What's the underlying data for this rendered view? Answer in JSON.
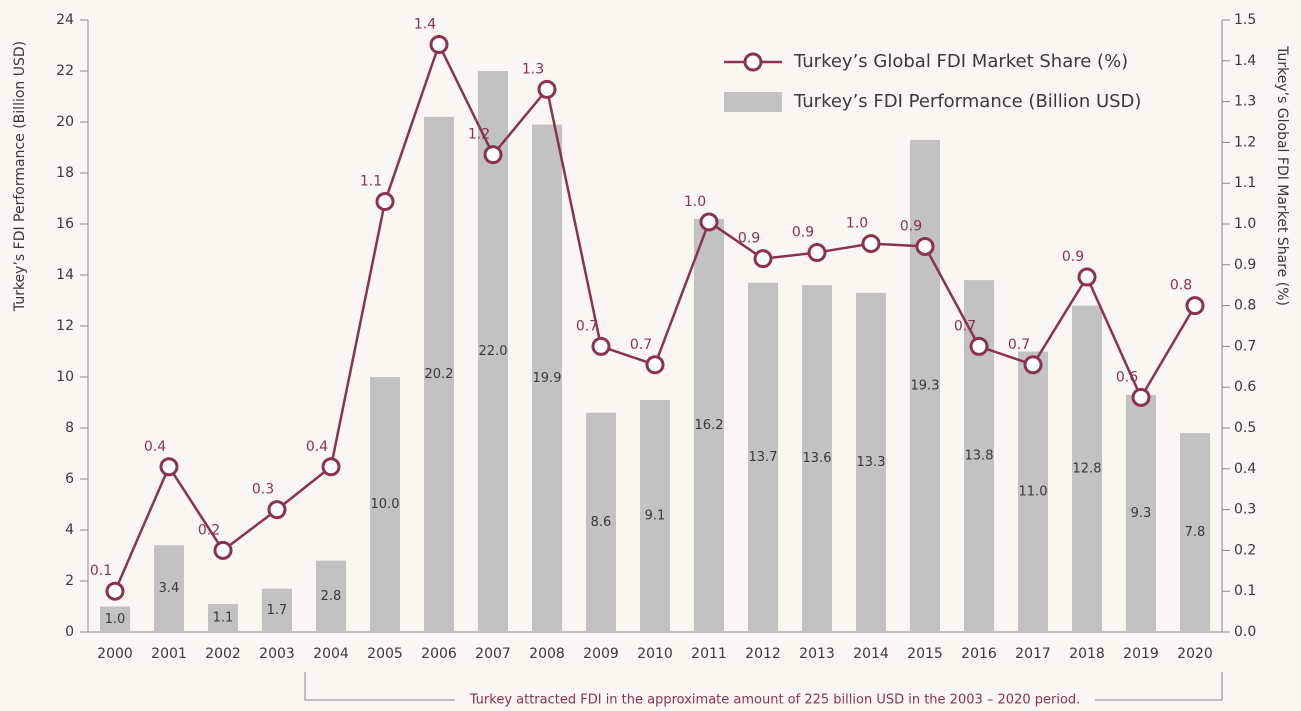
{
  "chart_data": {
    "type": "bar",
    "legend_position": "upper right",
    "y_label": "Turkey’s FDI Performance (Billion USD)",
    "y2_label": "Turkey’s Global FDI Market Share (%)",
    "annotation": "Turkey attracted FDI in the approximate amount of 225 billion USD in the 2003 – 2020 period.",
    "categories": [
      "2000",
      "2001",
      "2002",
      "2003",
      "2004",
      "2005",
      "2006",
      "2007",
      "2008",
      "2009",
      "2010",
      "2011",
      "2012",
      "2013",
      "2014",
      "2015",
      "2016",
      "2017",
      "2018",
      "2019",
      "2020"
    ],
    "series": [
      {
        "name": "Turkey’s Global FDI Market Share (%)",
        "type": "line",
        "axis": "y2",
        "color": "#8b3250",
        "values": [
          0.1,
          0.405,
          0.2,
          0.3,
          0.405,
          1.055,
          1.44,
          1.17,
          1.33,
          0.7,
          0.655,
          1.005,
          0.915,
          0.93,
          0.952,
          0.945,
          0.7,
          0.655,
          0.87,
          0.575,
          0.8
        ],
        "value_labels": [
          "0.1",
          "0.4",
          "0.2",
          "0.3",
          "0.4",
          "1.1",
          "1.4",
          "1.2",
          "1.3",
          "0.7",
          "0.7",
          "1.0",
          "0.9",
          "0.9",
          "1.0",
          "0.9",
          "0.7",
          "0.7",
          "0.9",
          "0.6",
          "0.8"
        ]
      },
      {
        "name": "Turkey’s FDI Performance (Billion USD)",
        "type": "bar",
        "axis": "y",
        "color": "#c2c2c2",
        "values": [
          1.0,
          3.4,
          1.1,
          1.7,
          2.8,
          10.0,
          20.2,
          22.0,
          19.9,
          8.6,
          9.1,
          16.2,
          13.7,
          13.6,
          13.3,
          19.3,
          13.8,
          11.0,
          12.8,
          9.3,
          7.8
        ],
        "value_labels": [
          "1.0",
          "3.4",
          "1.1",
          "1.7",
          "2.8",
          "10.0",
          "20.2",
          "22.0",
          "19.9",
          "8.6",
          "9.1",
          "16.2",
          "13.7",
          "13.6",
          "13.3",
          "19.3",
          "13.8",
          "11.0",
          "12.8",
          "9.3",
          "7.8"
        ]
      }
    ],
    "ylim": [
      0,
      24
    ],
    "yticks": [
      0,
      2,
      4,
      6,
      8,
      10,
      12,
      14,
      16,
      18,
      20,
      22,
      24
    ],
    "y2lim": [
      0,
      1.5
    ],
    "y2ticks": [
      {
        "value": 0,
        "label": "0.0"
      },
      0.1,
      0.2,
      0.3,
      0.4,
      0.5,
      0.6,
      0.7,
      0.8,
      0.9,
      {
        "value": 1,
        "label": "1.0"
      },
      1.1,
      1.2,
      1.3,
      1.4,
      1.5
    ]
  }
}
